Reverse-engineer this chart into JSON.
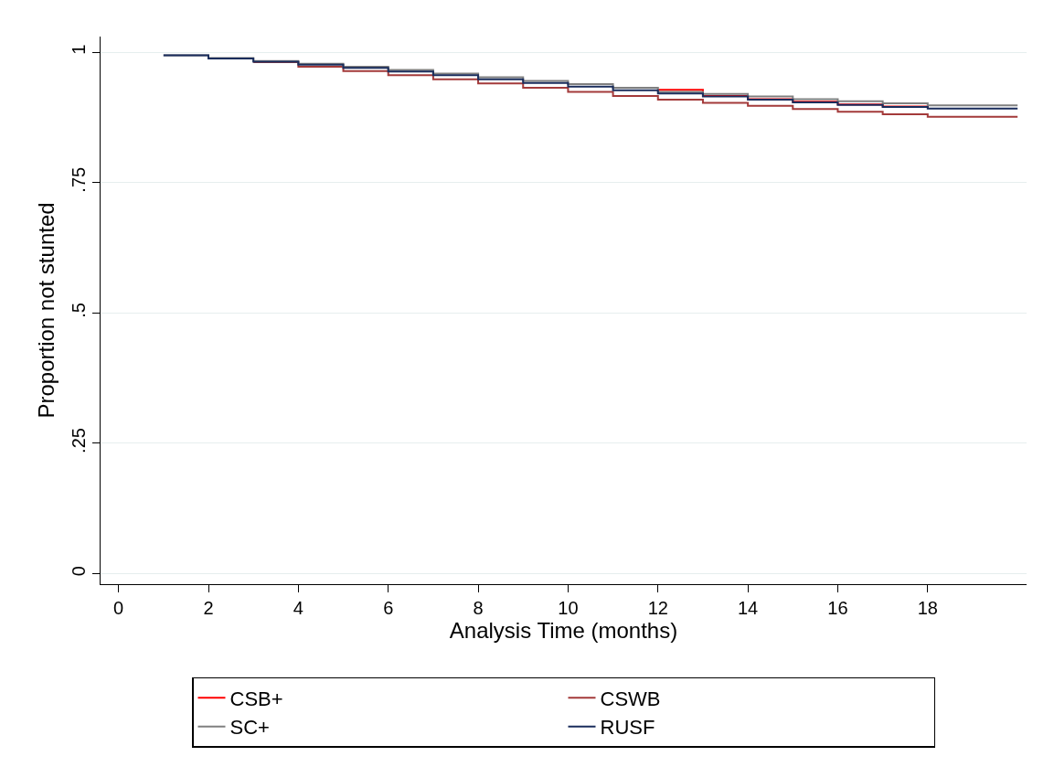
{
  "chart_data": {
    "type": "step",
    "xlabel": "Analysis Time (months)",
    "ylabel": "Proportion not stunted",
    "x": [
      1,
      2,
      3,
      4,
      5,
      6,
      7,
      8,
      9,
      10,
      11,
      12,
      13,
      14,
      15,
      16,
      17,
      18,
      20
    ],
    "series": [
      {
        "name": "CSB+",
        "color": "#ff0000",
        "values": [
          null,
          null,
          null,
          null,
          null,
          null,
          null,
          null,
          null,
          null,
          null,
          0.928,
          0.916,
          0.91,
          0.905,
          0.9,
          0.896,
          0.893,
          null
        ]
      },
      {
        "name": "CSWB",
        "color": "#a33a3a",
        "values": [
          null,
          null,
          0.981,
          0.972,
          0.964,
          0.956,
          0.948,
          0.94,
          0.932,
          0.924,
          0.916,
          0.909,
          0.903,
          0.897,
          0.891,
          0.886,
          0.881,
          0.876,
          0.876
        ]
      },
      {
        "name": "SC+",
        "color": "#808080",
        "values": [
          0.994,
          0.989,
          0.983,
          0.978,
          0.972,
          0.966,
          0.959,
          0.952,
          0.945,
          0.939,
          0.932,
          0.924,
          0.92,
          0.915,
          0.91,
          0.906,
          0.902,
          0.898,
          0.898
        ]
      },
      {
        "name": "RUSF",
        "color": "#1a2d5c",
        "values": [
          0.994,
          0.988,
          0.982,
          0.976,
          0.97,
          0.963,
          0.956,
          0.948,
          0.941,
          0.934,
          0.927,
          0.921,
          0.915,
          0.909,
          0.904,
          0.899,
          0.895,
          0.892,
          0.892
        ]
      }
    ],
    "xlim": [
      -0.4,
      20.2
    ],
    "xticks": [
      0,
      2,
      4,
      6,
      8,
      10,
      12,
      14,
      16,
      18
    ],
    "ylim": [
      -0.02,
      1.03
    ],
    "yticks": [
      {
        "value": 0,
        "label": "0"
      },
      {
        "value": 0.25,
        "label": ".25"
      },
      {
        "value": 0.5,
        "label": ".5"
      },
      {
        "value": 0.75,
        "label": ".75"
      },
      {
        "value": 1,
        "label": "1"
      }
    ],
    "grid": "y",
    "legend": "bottom",
    "line_style": "solid",
    "marker": "none"
  }
}
